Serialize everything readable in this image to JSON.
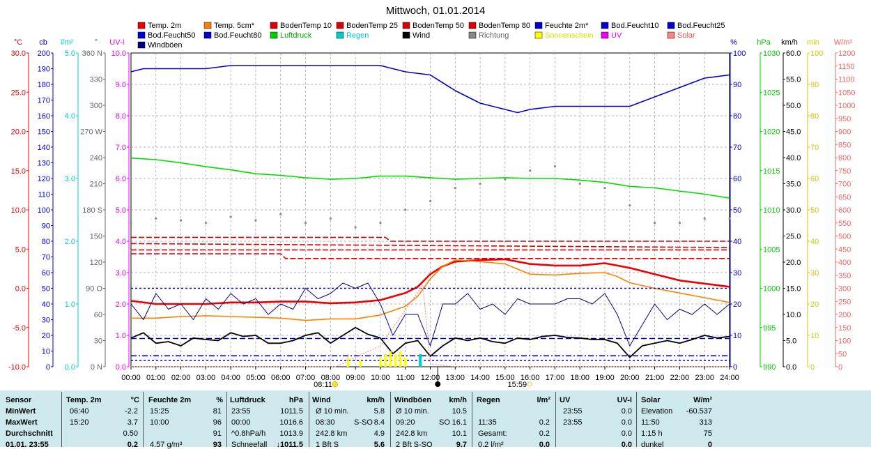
{
  "title": "Mittwoch, 01.01.2014",
  "legend": [
    {
      "label": "Temp. 2m",
      "color": "#ee0000"
    },
    {
      "label": "Temp. 5cm*",
      "color": "#ff8000"
    },
    {
      "label": "BodenTemp 10",
      "color": "#dd0000"
    },
    {
      "label": "BodenTemp 25",
      "color": "#dd0000"
    },
    {
      "label": "BodenTemp 50",
      "color": "#dd0000"
    },
    {
      "label": "BodenTemp 80",
      "color": "#dd0000"
    },
    {
      "label": "Feuchte 2m*",
      "color": "#0000cc"
    },
    {
      "label": "Bod.Feucht10",
      "color": "#0000cc"
    },
    {
      "label": "Bod.Feucht25",
      "color": "#0000cc"
    },
    {
      "label": "Bod.Feucht50",
      "color": "#0000cc"
    },
    {
      "label": "Bod.Feucht80",
      "color": "#0000cc"
    },
    {
      "label": "Luftdruck",
      "color": "#00cc00"
    },
    {
      "label": "Regen",
      "color": "#00cccc"
    },
    {
      "label": "Wind",
      "color": "#000000"
    },
    {
      "label": "Richtung",
      "color": "#888888"
    },
    {
      "label": "Sonnenschein",
      "color": "#ffff00"
    },
    {
      "label": "UV",
      "color": "#ee00ee"
    },
    {
      "label": "Solar",
      "color": "#ff8080"
    },
    {
      "label": "Windböen",
      "color": "#000080"
    }
  ],
  "left_axes": [
    {
      "unit": "°C",
      "color": "#ee0000",
      "ticks": [
        "30.0",
        "25.0",
        "20.0",
        "15.0",
        "10.0",
        "5.0",
        "0.0",
        "-5.0",
        "-10.0"
      ]
    },
    {
      "unit": "cb",
      "color": "#0000cc",
      "ticks": [
        "200",
        "190",
        "180",
        "170",
        "160",
        "150",
        "140",
        "130",
        "120",
        "110",
        "100",
        "90",
        "80",
        "70",
        "60",
        "50",
        "40",
        "30",
        "20",
        "10",
        "0"
      ]
    },
    {
      "unit": "l/m²",
      "color": "#00cccc",
      "ticks": [
        "5.0",
        "4.0",
        "3.0",
        "2.0",
        "1.0",
        "0.0"
      ]
    },
    {
      "unit": "°",
      "color": "#666666",
      "ticks": [
        "360 N",
        "330",
        "300",
        "270 W",
        "240",
        "210",
        "180 S",
        "150",
        "120",
        "90 O",
        "60",
        "30",
        "0 N"
      ]
    },
    {
      "unit": "UV-I",
      "color": "#ee00ee",
      "ticks": [
        "10.0",
        "9.0",
        "8.0",
        "7.0",
        "6.0",
        "5.0",
        "4.0",
        "3.0",
        "2.0",
        "1.0",
        "0.0"
      ]
    }
  ],
  "right_axes": [
    {
      "unit": "%",
      "color": "#0000cc",
      "ticks": [
        "100",
        "90",
        "80",
        "70",
        "60",
        "50",
        "40",
        "30",
        "20",
        "10",
        "0"
      ]
    },
    {
      "unit": "hPa",
      "color": "#00cc00",
      "ticks": [
        "1030",
        "1025",
        "1020",
        "1015",
        "1010",
        "1005",
        "1000",
        "995",
        "990"
      ]
    },
    {
      "unit": "km/h",
      "color": "#000000",
      "ticks": [
        "60.0",
        "55.0",
        "50.0",
        "45.0",
        "40.0",
        "35.0",
        "30.0",
        "25.0",
        "20.0",
        "15.0",
        "10.0",
        "5.0",
        "0.0"
      ]
    },
    {
      "unit": "min",
      "color": "#cccc00",
      "ticks": [
        "100",
        "90",
        "80",
        "70",
        "60",
        "50",
        "40",
        "30",
        "20",
        "10",
        "0"
      ]
    },
    {
      "unit": "W/m²",
      "color": "#ff6060",
      "ticks": [
        "1200",
        "1150",
        "1100",
        "1050",
        "1000",
        "950",
        "900",
        "850",
        "800",
        "750",
        "700",
        "650",
        "600",
        "550",
        "500",
        "450",
        "400",
        "350",
        "300",
        "250",
        "200",
        "150",
        "100",
        "50",
        "0"
      ]
    }
  ],
  "x_ticks": [
    "00:00",
    "01:00",
    "02:00",
    "03:00",
    "04:00",
    "05:00",
    "06:00",
    "07:00",
    "08:00",
    "09:00",
    "10:00",
    "11:00",
    "12:00",
    "13:00",
    "14:00",
    "15:00",
    "16:00",
    "17:00",
    "18:00",
    "19:00",
    "20:00",
    "21:00",
    "22:00",
    "23:00",
    "24:00"
  ],
  "sunrise": "08:11",
  "sunset": "15:59",
  "chart_data": {
    "type": "line",
    "title": "Mittwoch, 01.01.2014",
    "x_unit": "hour",
    "xlim": [
      0,
      24
    ],
    "series": [
      {
        "name": "Temp. 2m",
        "unit": "°C",
        "color": "#ee0000",
        "x": [
          0,
          1,
          2,
          3,
          4,
          5,
          6,
          7,
          8,
          9,
          10,
          11,
          11.5,
          12,
          12.5,
          13,
          14,
          15,
          16,
          17,
          18,
          19,
          19.5,
          20,
          21,
          22,
          23,
          24
        ],
        "y": [
          -1.6,
          -2.0,
          -2.0,
          -2.0,
          -1.8,
          -1.8,
          -1.7,
          -1.7,
          -1.9,
          -1.8,
          -1.5,
          -0.6,
          0.2,
          1.8,
          2.8,
          3.4,
          3.6,
          3.7,
          3.1,
          2.9,
          2.9,
          3.2,
          2.9,
          2.6,
          1.8,
          1.0,
          0.6,
          0.2
        ]
      },
      {
        "name": "Temp. 5cm*",
        "unit": "°C",
        "color": "#ff8000",
        "x": [
          0,
          1,
          2,
          3,
          4,
          5,
          6,
          7,
          8,
          9,
          10,
          11,
          11.5,
          12,
          12.5,
          13,
          14,
          15,
          16,
          17,
          18,
          19,
          19.5,
          20,
          21,
          22,
          23,
          24
        ],
        "y": [
          -3.8,
          -3.8,
          -3.6,
          -3.5,
          -3.6,
          -3.7,
          -3.8,
          -4.1,
          -3.9,
          -3.9,
          -3.4,
          -2.3,
          -1.0,
          1.2,
          2.8,
          3.6,
          3.4,
          3.1,
          1.8,
          1.7,
          1.9,
          2.0,
          1.5,
          0.7,
          0.0,
          -0.6,
          -1.2,
          -1.8
        ]
      },
      {
        "name": "BodenTemp 10",
        "unit": "°C",
        "color": "#dd0000",
        "dash": "8,3",
        "x": [
          0,
          10.2,
          10.4,
          24
        ],
        "y": [
          6.5,
          6.5,
          6.0,
          6.0
        ]
      },
      {
        "name": "BodenTemp 25",
        "unit": "°C",
        "color": "#dd0000",
        "dash": "8,3",
        "x": [
          0,
          24
        ],
        "y": [
          5.7,
          5.2
        ]
      },
      {
        "name": "BodenTemp 50",
        "unit": "°C",
        "color": "#dd0000",
        "dash": "8,3",
        "x": [
          0,
          24
        ],
        "y": [
          4.9,
          4.9
        ]
      },
      {
        "name": "BodenTemp 80",
        "unit": "°C",
        "color": "#dd0000",
        "dash": "8,3",
        "x": [
          0,
          6,
          6.2,
          24
        ],
        "y": [
          4.4,
          4.4,
          3.8,
          3.8
        ]
      },
      {
        "name": "Feuchte 2m*",
        "unit": "%",
        "color": "#0000cc",
        "x": [
          0,
          0.5,
          1,
          2,
          3,
          4,
          5,
          6,
          7,
          8,
          9,
          10,
          11,
          12,
          13,
          14,
          15,
          15.5,
          16,
          17,
          18,
          19,
          19.5,
          20,
          21,
          22,
          23,
          24
        ],
        "y": [
          94,
          95,
          95,
          95,
          95,
          96,
          96,
          96,
          96,
          96,
          96,
          96,
          94,
          93,
          88,
          84,
          82,
          81,
          82,
          83,
          83,
          83,
          83,
          83,
          86,
          89,
          92,
          93
        ]
      },
      {
        "name": "Bod.Feucht10",
        "unit": "cb",
        "color": "#0000cc",
        "dash": "3,3",
        "x": [
          0,
          24
        ],
        "y": [
          50,
          50
        ]
      },
      {
        "name": "Bod.Feucht25",
        "unit": "cb",
        "color": "#0000cc",
        "dash": "8,3,2,3",
        "x": [
          0,
          24
        ],
        "y": [
          7,
          7
        ]
      },
      {
        "name": "Bod.Feucht50",
        "unit": "cb",
        "color": "#0000cc",
        "dash": "3,3",
        "x": [
          0,
          24
        ],
        "y": [
          4,
          4
        ]
      },
      {
        "name": "Bod.Feucht80",
        "unit": "cb",
        "color": "#0000cc",
        "dash": "8,4",
        "x": [
          0,
          24
        ],
        "y": [
          18,
          18
        ]
      },
      {
        "name": "Luftdruck",
        "unit": "hPa",
        "color": "#00dd00",
        "x": [
          0,
          1,
          2,
          3,
          4,
          5,
          6,
          7,
          8,
          9,
          10,
          11,
          12,
          13,
          14,
          15,
          16,
          17,
          18,
          19,
          20,
          21,
          22,
          23,
          24
        ],
        "y": [
          1016.6,
          1016.4,
          1016.0,
          1015.5,
          1015.1,
          1014.6,
          1014.4,
          1014.1,
          1013.9,
          1014.0,
          1014.3,
          1014.3,
          1014.1,
          1013.9,
          1014.0,
          1014.1,
          1014.0,
          1014.0,
          1013.8,
          1013.5,
          1013.0,
          1012.8,
          1012.4,
          1012.0,
          1011.5
        ]
      },
      {
        "name": "Wind",
        "unit": "km/h",
        "color": "#000000",
        "x": [
          0,
          0.5,
          1,
          1.5,
          2,
          2.5,
          3,
          3.5,
          4,
          4.5,
          5,
          5.5,
          6,
          6.5,
          7,
          7.5,
          8,
          8.5,
          9,
          9.5,
          10,
          10.5,
          11,
          11.5,
          12,
          12.5,
          13,
          13.5,
          14,
          14.5,
          15,
          15.5,
          16,
          16.5,
          17,
          17.5,
          18,
          18.5,
          19,
          19.5,
          20,
          20.5,
          21,
          21.5,
          22,
          22.5,
          23,
          23.5,
          24
        ],
        "y": [
          5.5,
          6.5,
          4.5,
          4.8,
          4.0,
          5.5,
          5.2,
          5.0,
          6.5,
          5.8,
          6.0,
          4.5,
          4.5,
          5.0,
          6.0,
          6.5,
          4.5,
          6.0,
          7.5,
          6.2,
          5.5,
          2.5,
          4.5,
          5.0,
          2.0,
          4.0,
          5.5,
          5.0,
          5.5,
          4.8,
          4.5,
          5.5,
          5.2,
          5.8,
          6.0,
          5.6,
          5.5,
          5.2,
          5.2,
          4.5,
          1.8,
          4.0,
          4.5,
          5.0,
          4.5,
          5.2,
          6.0,
          5.5,
          5.8
        ]
      },
      {
        "name": "Windböen",
        "unit": "km/h",
        "color": "#000080",
        "x": [
          0,
          0.5,
          1,
          1.5,
          2,
          2.5,
          3,
          3.5,
          4,
          4.5,
          5,
          5.5,
          6,
          6.5,
          7,
          7.5,
          8,
          8.5,
          9,
          9.5,
          10,
          10.5,
          11,
          11.5,
          12,
          12.5,
          13,
          13.5,
          14,
          14.5,
          15,
          15.5,
          16,
          16.5,
          17,
          17.5,
          18,
          18.5,
          19,
          19.5,
          20,
          20.5,
          21,
          21.5,
          22,
          22.5,
          23,
          23.5,
          24
        ],
        "y": [
          12,
          9,
          14,
          11,
          12,
          9,
          13,
          11,
          14,
          12,
          13,
          10,
          12,
          11,
          15,
          13,
          14,
          16,
          15,
          16,
          12,
          6,
          10,
          10,
          4,
          12,
          12,
          14,
          11,
          12,
          10,
          13,
          12,
          12,
          12,
          13,
          13,
          12,
          14,
          10,
          4,
          8,
          12,
          9,
          11,
          10,
          12,
          10,
          12
        ]
      },
      {
        "name": "Richtung",
        "unit": "°",
        "color": "#888888",
        "x": [
          0,
          1,
          2,
          3,
          4,
          5,
          6,
          7,
          8,
          9,
          10,
          11,
          12,
          13,
          14,
          15,
          16,
          17,
          18,
          19,
          20,
          21,
          22,
          23,
          24
        ],
        "y": [
          165,
          170,
          168,
          165,
          172,
          168,
          175,
          165,
          170,
          160,
          165,
          180,
          190,
          205,
          210,
          215,
          225,
          230,
          210,
          205,
          185,
          165,
          165,
          170,
          170
        ]
      },
      {
        "name": "Sonnenschein",
        "unit": "min",
        "color": "#ffff00",
        "x": [
          8.7,
          9.2,
          10.0,
          10.2,
          10.4,
          10.6,
          10.8,
          11.0,
          11.6
        ],
        "y": [
          3,
          2,
          3,
          4,
          5,
          4,
          5,
          3,
          4
        ]
      },
      {
        "name": "Regen",
        "unit": "l/m²",
        "color": "#00cccc",
        "x": [
          11.6
        ],
        "y": [
          0.2
        ]
      },
      {
        "name": "UV",
        "unit": "UV-I",
        "color": "#ee00ee",
        "x": [
          0,
          24
        ],
        "y": [
          0,
          0
        ]
      },
      {
        "name": "Solar",
        "unit": "W/m²",
        "color": "#ff8080",
        "x": [
          0,
          8.2,
          10,
          11.7,
          12,
          13,
          15,
          16,
          24
        ],
        "y": [
          0,
          0,
          80,
          313,
          10,
          0,
          0,
          0,
          0
        ]
      }
    ]
  },
  "stats": {
    "headers": {
      "sensor": "Sensor",
      "temp": "Temp. 2m",
      "temp_unit": "°C",
      "hum": "Feuchte 2m",
      "hum_unit": "%",
      "press": "Luftdruck",
      "press_unit": "hPa",
      "wind": "Wind",
      "wind_unit": "km/h",
      "gust": "Windböen",
      "gust_unit": "km/h",
      "rain": "Regen",
      "rain_unit": "l/m²",
      "uv": "UV",
      "uv_unit": "UV-I",
      "solar": "Solar",
      "solar_unit": "W/m²"
    },
    "rows": [
      {
        "label": "MinWert",
        "temp_t": "06:40",
        "temp_v": "-2.2",
        "hum_t": "15:25",
        "hum_v": "81",
        "press_t": "23:55",
        "press_v": "1011.5",
        "wind_a": "Ø 10 min.",
        "wind_v": "5.8",
        "gust_a": "Ø 10 min.",
        "gust_v": "10.5",
        "rain_a": "",
        "rain_v": "",
        "uv_t": "23:55",
        "uv_v": "0.0",
        "solar_a": "Elevation",
        "solar_v": "-60.537"
      },
      {
        "label": "MaxWert",
        "temp_t": "15:20",
        "temp_v": "3.7",
        "hum_t": "10:00",
        "hum_v": "96",
        "press_t": "00:00",
        "press_v": "1016.6",
        "wind_a": "08:30",
        "wind_b": "S-SO",
        "wind_v": "8.4",
        "gust_a": "09:20",
        "gust_b": "SO",
        "gust_v": "16.1",
        "rain_a": "11:35",
        "rain_v": "0.2",
        "uv_t": "23:55",
        "uv_v": "0.0",
        "solar_a": "11:50",
        "solar_v": "313"
      },
      {
        "label": "Durchschnitt",
        "temp_t": "",
        "temp_v": "0.50",
        "hum_t": "",
        "hum_v": "91",
        "press_t": "^0.8hPa/h",
        "press_v": "1013.9",
        "wind_a": "242.8 km",
        "wind_v": "4.9",
        "gust_a": "242.8 km",
        "gust_v": "10.1",
        "rain_a": "Gesamt:",
        "rain_v": "0.2",
        "uv_t": "",
        "uv_v": "0.0",
        "solar_a": "1:15 h",
        "solar_v": "75"
      },
      {
        "label": "01.01. 23:55",
        "temp_t": "",
        "temp_v": "0.2",
        "hum_t": "4.57 g/m³",
        "hum_v": "93",
        "press_t": "Schneefall",
        "press_v": "↓1011.5",
        "wind_a": "1 Bft S",
        "wind_v": "5.6",
        "gust_a": "2 Bft S-SO",
        "gust_v": "9.7",
        "rain_a": "0.2 l/m²",
        "rain_v": "0.0",
        "uv_t": "",
        "uv_v": "0.0",
        "solar_a": "dunkel",
        "solar_v": "0"
      }
    ]
  }
}
